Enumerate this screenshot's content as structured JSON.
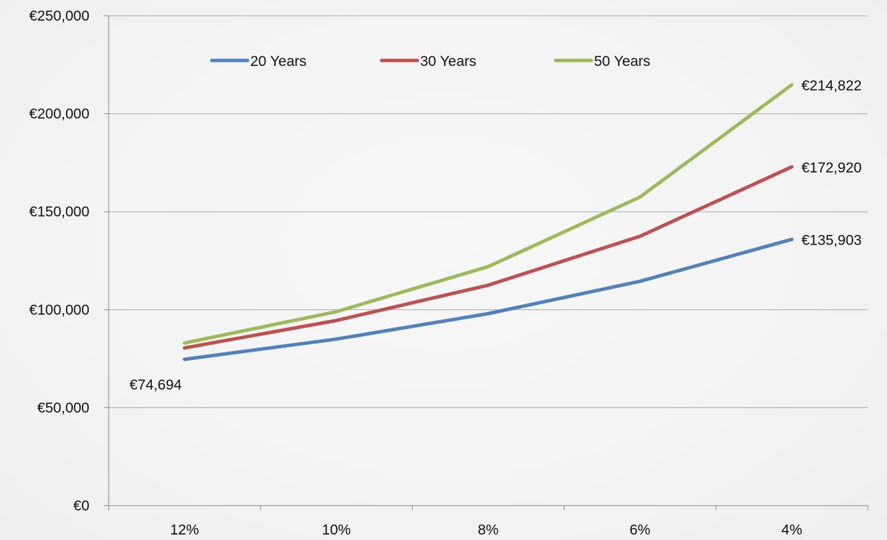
{
  "chart_data": {
    "type": "line",
    "categories": [
      "12%",
      "10%",
      "8%",
      "6%",
      "4%"
    ],
    "series": [
      {
        "name": "20 Years",
        "color": "#4f81bd",
        "values": [
          74694,
          85000,
          98000,
          114500,
          135903
        ],
        "labels": [
          {
            "index": 0,
            "text": "€74,694"
          },
          {
            "index": 4,
            "text": "€135,903"
          }
        ]
      },
      {
        "name": "30 Years",
        "color": "#c0504d",
        "values": [
          80500,
          94500,
          112500,
          137500,
          172920
        ],
        "labels": [
          {
            "index": 4,
            "text": "€172,920"
          }
        ]
      },
      {
        "name": "50 Years",
        "color": "#9bbb59",
        "values": [
          83000,
          99000,
          122000,
          157500,
          214822
        ],
        "labels": [
          {
            "index": 4,
            "text": "€214,822"
          }
        ]
      }
    ],
    "ylim": [
      0,
      250000
    ],
    "yticks": [
      0,
      50000,
      100000,
      150000,
      200000,
      250000
    ],
    "ytick_labels": [
      "€0",
      "€50,000",
      "€100,000",
      "€150,000",
      "€200,000",
      "€250,000"
    ],
    "grid": true,
    "legend_position": "top"
  }
}
